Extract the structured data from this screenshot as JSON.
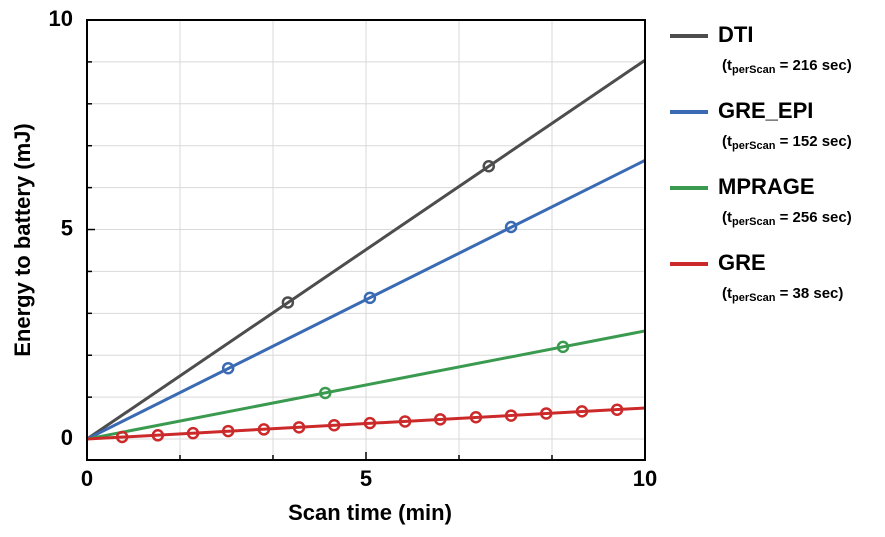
{
  "chart_data": {
    "type": "line",
    "x_label": "Scan time (min)",
    "y_label": "Energy to battery (mJ)",
    "xlim": [
      0,
      10
    ],
    "ylim": [
      -0.5,
      10
    ],
    "xticks": [
      0,
      5,
      10
    ],
    "yticks": [
      0,
      5,
      10
    ],
    "xminorticks": [
      1.667,
      3.333,
      6.667,
      8.333
    ],
    "yminorticks": [
      1,
      2,
      3,
      4,
      6,
      7,
      8,
      9
    ],
    "grid": true,
    "legend_position": "right",
    "series": [
      {
        "name": "DTI",
        "color": "#4d4d4d",
        "note": {
          "prefix": "(t",
          "sub": "perScan",
          "suffix": " = 216 sec)"
        },
        "x": [
          0,
          10
        ],
        "values": [
          0,
          9.04
        ],
        "marker_x": [
          3.6,
          7.2
        ],
        "marker_values": [
          3.26,
          6.51
        ]
      },
      {
        "name": "GRE_EPI",
        "color": "#3a6ab4",
        "note": {
          "prefix": "(t",
          "sub": "perScan",
          "suffix": " = 152 sec)"
        },
        "x": [
          0,
          10
        ],
        "values": [
          0,
          6.65
        ],
        "marker_x": [
          2.53,
          5.07,
          7.6
        ],
        "marker_values": [
          1.69,
          3.37,
          5.06
        ]
      },
      {
        "name": "MPRAGE",
        "color": "#3a9a4f",
        "note": {
          "prefix": "(t",
          "sub": "perScan",
          "suffix": " = 256 sec)"
        },
        "x": [
          0,
          10
        ],
        "values": [
          0,
          2.58
        ],
        "marker_x": [
          4.27,
          8.53
        ],
        "marker_values": [
          1.1,
          2.2
        ]
      },
      {
        "name": "GRE",
        "color": "#cc2a2a",
        "note": {
          "prefix": "(t",
          "sub": "perScan",
          "suffix": " = 38 sec)"
        },
        "x": [
          0,
          10
        ],
        "values": [
          0,
          0.74
        ],
        "marker_x": [
          0.63,
          1.27,
          1.9,
          2.53,
          3.17,
          3.8,
          4.43,
          5.07,
          5.7,
          6.33,
          6.97,
          7.6,
          8.23,
          8.87,
          9.5
        ],
        "marker_values": [
          0.05,
          0.09,
          0.14,
          0.19,
          0.23,
          0.28,
          0.33,
          0.38,
          0.42,
          0.47,
          0.52,
          0.56,
          0.61,
          0.66,
          0.7
        ]
      }
    ]
  }
}
